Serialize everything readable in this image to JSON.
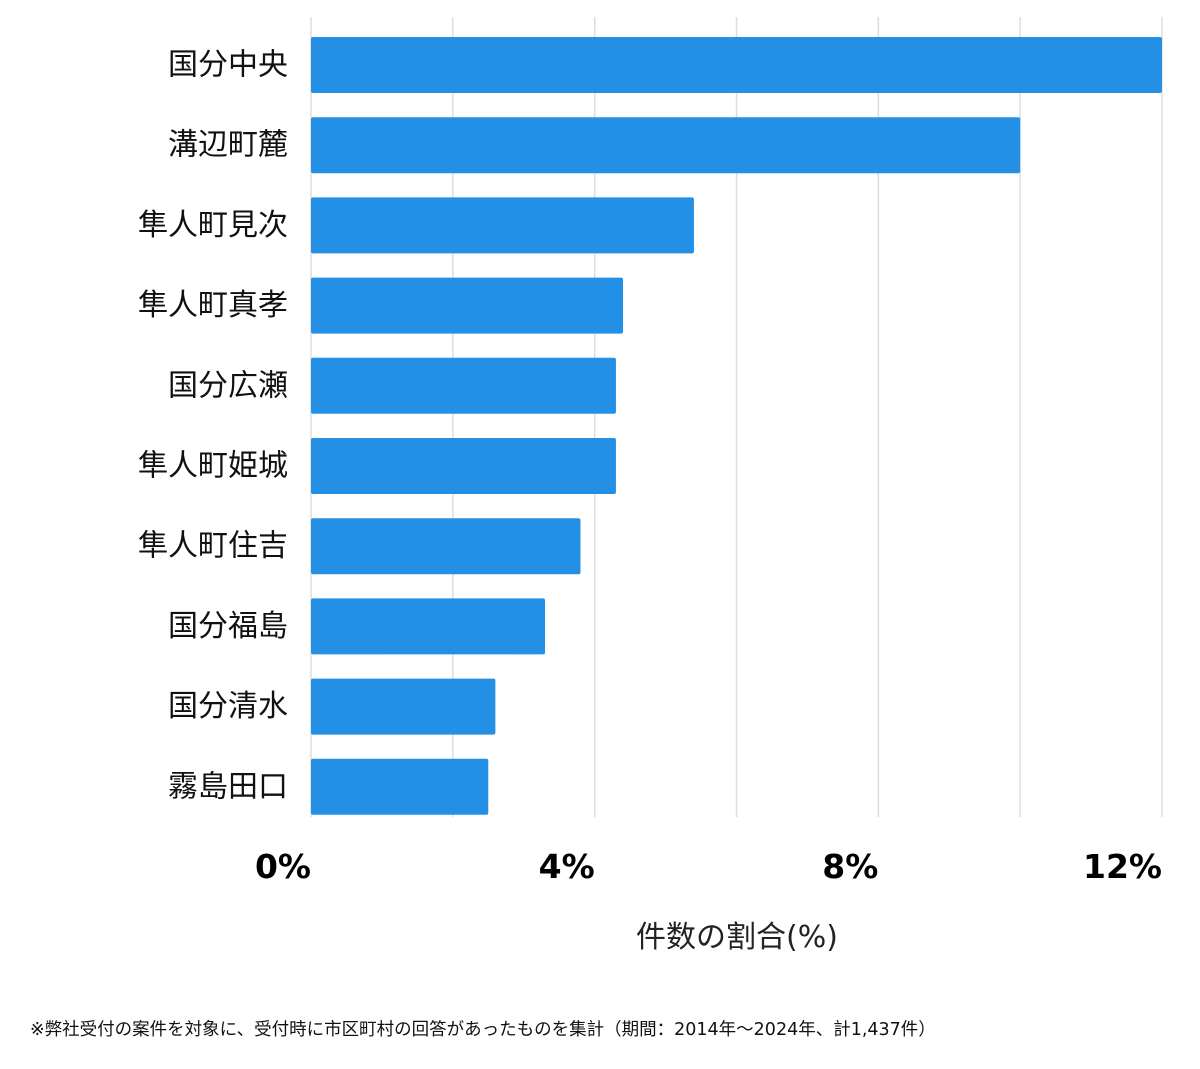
{
  "chart_data": {
    "type": "bar",
    "orientation": "horizontal",
    "categories": [
      "国分中央",
      "溝辺町麓",
      "隼人町見次",
      "隼人町真孝",
      "国分広瀬",
      "隼人町姫城",
      "隼人町住吉",
      "国分福島",
      "国分清水",
      "霧島田口"
    ],
    "values": [
      12.0,
      10.0,
      5.4,
      4.4,
      4.3,
      4.3,
      3.8,
      3.3,
      2.6,
      2.5
    ],
    "xlim": [
      0,
      12
    ],
    "xticks": [
      0,
      4,
      8,
      12
    ],
    "xtick_labels": [
      "0%",
      "4%",
      "8%",
      "12%"
    ],
    "xlabel": "件数の割合(%)",
    "ylabel": "",
    "grid": true,
    "bar_color": "#2490e5"
  },
  "footnote": "※弊社受付の案件を対象に、受付時に市区町村の回答があったものを集計（期間：2014年～2024年、計1,437件）"
}
